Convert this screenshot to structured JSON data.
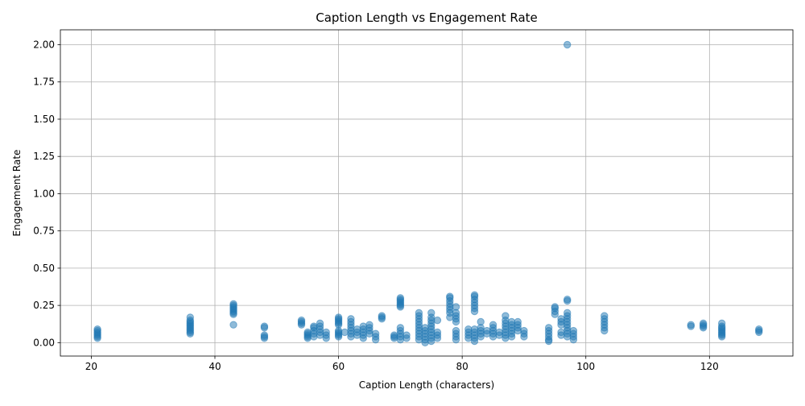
{
  "chart_data": {
    "type": "scatter",
    "title": "Caption Length vs Engagement Rate",
    "xlabel": "Caption Length (characters)",
    "ylabel": "Engagement Rate",
    "xlim": [
      15,
      133.5
    ],
    "ylim": [
      -0.09,
      2.1
    ],
    "xticks": [
      20,
      40,
      60,
      80,
      100,
      120
    ],
    "yticks": [
      0.0,
      0.25,
      0.5,
      0.75,
      1.0,
      1.25,
      1.5,
      1.75,
      2.0
    ],
    "ytick_labels": [
      "0.00",
      "0.25",
      "0.50",
      "0.75",
      "1.00",
      "1.25",
      "1.50",
      "1.75",
      "2.00"
    ],
    "grid": true,
    "marker_color": "#1f77b4",
    "marker_alpha": 0.5,
    "series": [
      {
        "points": [
          [
            21,
            0.03
          ],
          [
            21,
            0.04
          ],
          [
            21,
            0.05
          ],
          [
            21,
            0.06
          ],
          [
            21,
            0.07
          ],
          [
            21,
            0.08
          ],
          [
            21,
            0.09
          ],
          [
            36,
            0.06
          ],
          [
            36,
            0.07
          ],
          [
            36,
            0.08
          ],
          [
            36,
            0.09
          ],
          [
            36,
            0.1
          ],
          [
            36,
            0.11
          ],
          [
            36,
            0.12
          ],
          [
            36,
            0.13
          ],
          [
            36,
            0.14
          ],
          [
            36,
            0.15
          ],
          [
            36,
            0.17
          ],
          [
            43,
            0.12
          ],
          [
            43,
            0.19
          ],
          [
            43,
            0.2
          ],
          [
            43,
            0.21
          ],
          [
            43,
            0.22
          ],
          [
            43,
            0.23
          ],
          [
            43,
            0.24
          ],
          [
            43,
            0.25
          ],
          [
            43,
            0.26
          ],
          [
            48,
            0.03
          ],
          [
            48,
            0.04
          ],
          [
            48,
            0.05
          ],
          [
            48,
            0.1
          ],
          [
            48,
            0.11
          ],
          [
            54,
            0.12
          ],
          [
            54,
            0.13
          ],
          [
            54,
            0.14
          ],
          [
            54,
            0.15
          ],
          [
            55,
            0.03
          ],
          [
            55,
            0.04
          ],
          [
            55,
            0.05
          ],
          [
            55,
            0.06
          ],
          [
            55,
            0.07
          ],
          [
            56,
            0.04
          ],
          [
            56,
            0.06
          ],
          [
            56,
            0.08
          ],
          [
            56,
            0.1
          ],
          [
            56,
            0.11
          ],
          [
            57,
            0.05
          ],
          [
            57,
            0.07
          ],
          [
            57,
            0.09
          ],
          [
            57,
            0.11
          ],
          [
            57,
            0.13
          ],
          [
            58,
            0.03
          ],
          [
            58,
            0.05
          ],
          [
            58,
            0.07
          ],
          [
            60,
            0.04
          ],
          [
            60,
            0.05
          ],
          [
            60,
            0.06
          ],
          [
            60,
            0.07
          ],
          [
            60,
            0.08
          ],
          [
            60,
            0.12
          ],
          [
            60,
            0.13
          ],
          [
            60,
            0.14
          ],
          [
            60,
            0.15
          ],
          [
            60,
            0.16
          ],
          [
            60,
            0.17
          ],
          [
            61,
            0.07
          ],
          [
            62,
            0.04
          ],
          [
            62,
            0.06
          ],
          [
            62,
            0.08
          ],
          [
            62,
            0.1
          ],
          [
            62,
            0.12
          ],
          [
            62,
            0.14
          ],
          [
            62,
            0.16
          ],
          [
            63,
            0.05
          ],
          [
            63,
            0.07
          ],
          [
            63,
            0.09
          ],
          [
            64,
            0.03
          ],
          [
            64,
            0.05
          ],
          [
            64,
            0.07
          ],
          [
            64,
            0.09
          ],
          [
            64,
            0.11
          ],
          [
            65,
            0.06
          ],
          [
            65,
            0.08
          ],
          [
            65,
            0.1
          ],
          [
            65,
            0.12
          ],
          [
            66,
            0.02
          ],
          [
            66,
            0.04
          ],
          [
            66,
            0.06
          ],
          [
            67,
            0.16
          ],
          [
            67,
            0.17
          ],
          [
            67,
            0.18
          ],
          [
            69,
            0.03
          ],
          [
            69,
            0.04
          ],
          [
            69,
            0.05
          ],
          [
            70,
            0.02
          ],
          [
            70,
            0.04
          ],
          [
            70,
            0.06
          ],
          [
            70,
            0.08
          ],
          [
            70,
            0.1
          ],
          [
            70,
            0.24
          ],
          [
            70,
            0.25
          ],
          [
            70,
            0.26
          ],
          [
            70,
            0.27
          ],
          [
            70,
            0.28
          ],
          [
            70,
            0.29
          ],
          [
            70,
            0.3
          ],
          [
            71,
            0.03
          ],
          [
            71,
            0.05
          ],
          [
            73,
            0.02
          ],
          [
            73,
            0.04
          ],
          [
            73,
            0.06
          ],
          [
            73,
            0.08
          ],
          [
            73,
            0.1
          ],
          [
            73,
            0.12
          ],
          [
            73,
            0.14
          ],
          [
            73,
            0.16
          ],
          [
            73,
            0.18
          ],
          [
            73,
            0.2
          ],
          [
            74,
            0.0
          ],
          [
            74,
            0.02
          ],
          [
            74,
            0.04
          ],
          [
            74,
            0.06
          ],
          [
            74,
            0.08
          ],
          [
            74,
            0.1
          ],
          [
            75,
            0.01
          ],
          [
            75,
            0.03
          ],
          [
            75,
            0.05
          ],
          [
            75,
            0.07
          ],
          [
            75,
            0.09
          ],
          [
            75,
            0.11
          ],
          [
            75,
            0.13
          ],
          [
            75,
            0.15
          ],
          [
            75,
            0.17
          ],
          [
            75,
            0.2
          ],
          [
            76,
            0.03
          ],
          [
            76,
            0.05
          ],
          [
            76,
            0.07
          ],
          [
            76,
            0.15
          ],
          [
            78,
            0.17
          ],
          [
            78,
            0.2
          ],
          [
            78,
            0.22
          ],
          [
            78,
            0.24
          ],
          [
            78,
            0.26
          ],
          [
            78,
            0.28
          ],
          [
            78,
            0.3
          ],
          [
            78,
            0.31
          ],
          [
            79,
            0.02
          ],
          [
            79,
            0.04
          ],
          [
            79,
            0.06
          ],
          [
            79,
            0.08
          ],
          [
            79,
            0.14
          ],
          [
            79,
            0.16
          ],
          [
            79,
            0.18
          ],
          [
            79,
            0.2
          ],
          [
            79,
            0.24
          ],
          [
            81,
            0.03
          ],
          [
            81,
            0.05
          ],
          [
            81,
            0.07
          ],
          [
            81,
            0.09
          ],
          [
            82,
            0.01
          ],
          [
            82,
            0.03
          ],
          [
            82,
            0.05
          ],
          [
            82,
            0.07
          ],
          [
            82,
            0.09
          ],
          [
            82,
            0.21
          ],
          [
            82,
            0.23
          ],
          [
            82,
            0.25
          ],
          [
            82,
            0.27
          ],
          [
            82,
            0.29
          ],
          [
            82,
            0.31
          ],
          [
            82,
            0.32
          ],
          [
            83,
            0.04
          ],
          [
            83,
            0.06
          ],
          [
            83,
            0.08
          ],
          [
            83,
            0.1
          ],
          [
            83,
            0.14
          ],
          [
            84,
            0.06
          ],
          [
            84,
            0.08
          ],
          [
            85,
            0.04
          ],
          [
            85,
            0.06
          ],
          [
            85,
            0.08
          ],
          [
            85,
            0.1
          ],
          [
            85,
            0.12
          ],
          [
            86,
            0.05
          ],
          [
            86,
            0.07
          ],
          [
            87,
            0.03
          ],
          [
            87,
            0.05
          ],
          [
            87,
            0.07
          ],
          [
            87,
            0.09
          ],
          [
            87,
            0.11
          ],
          [
            87,
            0.13
          ],
          [
            87,
            0.15
          ],
          [
            87,
            0.18
          ],
          [
            88,
            0.04
          ],
          [
            88,
            0.06
          ],
          [
            88,
            0.08
          ],
          [
            88,
            0.1
          ],
          [
            88,
            0.12
          ],
          [
            88,
            0.14
          ],
          [
            89,
            0.08
          ],
          [
            89,
            0.1
          ],
          [
            89,
            0.12
          ],
          [
            89,
            0.14
          ],
          [
            90,
            0.04
          ],
          [
            90,
            0.06
          ],
          [
            90,
            0.08
          ],
          [
            94,
            0.01
          ],
          [
            94,
            0.02
          ],
          [
            94,
            0.04
          ],
          [
            94,
            0.06
          ],
          [
            94,
            0.08
          ],
          [
            94,
            0.1
          ],
          [
            95,
            0.19
          ],
          [
            95,
            0.21
          ],
          [
            95,
            0.23
          ],
          [
            95,
            0.24
          ],
          [
            96,
            0.05
          ],
          [
            96,
            0.07
          ],
          [
            96,
            0.12
          ],
          [
            96,
            0.14
          ],
          [
            96,
            0.16
          ],
          [
            97,
            0.04
          ],
          [
            97,
            0.06
          ],
          [
            97,
            0.08
          ],
          [
            97,
            0.1
          ],
          [
            97,
            0.12
          ],
          [
            97,
            0.14
          ],
          [
            97,
            0.16
          ],
          [
            97,
            0.18
          ],
          [
            97,
            0.2
          ],
          [
            97,
            0.28
          ],
          [
            97,
            0.29
          ],
          [
            97,
            2.0
          ],
          [
            98,
            0.02
          ],
          [
            98,
            0.04
          ],
          [
            98,
            0.06
          ],
          [
            98,
            0.08
          ],
          [
            103,
            0.08
          ],
          [
            103,
            0.1
          ],
          [
            103,
            0.12
          ],
          [
            103,
            0.14
          ],
          [
            103,
            0.16
          ],
          [
            103,
            0.18
          ],
          [
            117,
            0.11
          ],
          [
            117,
            0.12
          ],
          [
            119,
            0.1
          ],
          [
            119,
            0.11
          ],
          [
            119,
            0.12
          ],
          [
            119,
            0.13
          ],
          [
            122,
            0.04
          ],
          [
            122,
            0.05
          ],
          [
            122,
            0.06
          ],
          [
            122,
            0.07
          ],
          [
            122,
            0.08
          ],
          [
            122,
            0.09
          ],
          [
            122,
            0.1
          ],
          [
            122,
            0.11
          ],
          [
            122,
            0.13
          ],
          [
            128,
            0.07
          ],
          [
            128,
            0.08
          ],
          [
            128,
            0.09
          ]
        ]
      }
    ]
  }
}
